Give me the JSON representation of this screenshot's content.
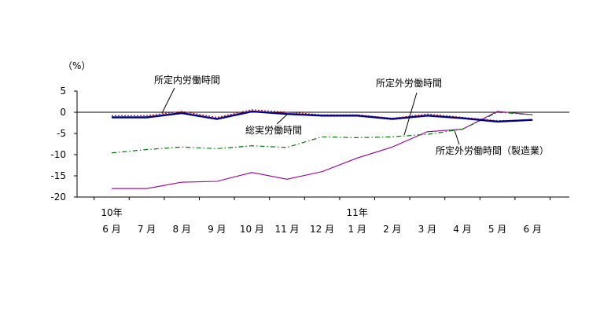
{
  "chart_data": {
    "type": "line",
    "unit_label": "（%）",
    "categories": [
      "6 月",
      "7 月",
      "8 月",
      "9 月",
      "10 月",
      "11 月",
      "12 月",
      "1 月",
      "2 月",
      "3 月",
      "4 月",
      "5 月",
      "6 月"
    ],
    "category_years": [
      {
        "index": 0,
        "label": "10年"
      },
      {
        "index": 7,
        "label": "11年"
      }
    ],
    "ylim": [
      -20,
      5
    ],
    "yticks": [
      5,
      0,
      -5,
      -10,
      -15,
      -20
    ],
    "zero_line": true,
    "grid": false,
    "series": [
      {
        "name": "所定内労働時間",
        "color": "#cc0000",
        "style": "dotted",
        "values": [
          -0.8,
          -0.8,
          0.2,
          -1.2,
          0.6,
          0.0,
          -0.6,
          -0.6,
          -1.4,
          -0.4,
          -1.2,
          -2.0,
          -1.8
        ]
      },
      {
        "name": "総実労働時間",
        "color": "#00008b",
        "style": "solid-thick",
        "values": [
          -1.2,
          -1.2,
          -0.2,
          -1.6,
          0.2,
          -0.4,
          -0.8,
          -0.8,
          -1.6,
          -0.8,
          -1.4,
          -2.2,
          -1.8
        ]
      },
      {
        "name": "所定外労働時間",
        "color": "#007700",
        "style": "dash-dot",
        "values": [
          -9.6,
          -8.8,
          -8.2,
          -8.6,
          -7.9,
          -8.3,
          -5.8,
          -6.0,
          -5.8,
          -5.2,
          -4.0,
          0.0,
          -0.6
        ]
      },
      {
        "name": "所定外労働時間（製造業）",
        "color": "#990099",
        "style": "solid",
        "values": [
          -18.0,
          -18.0,
          -16.5,
          -16.3,
          -14.2,
          -15.8,
          -14.0,
          -10.8,
          -8.2,
          -4.6,
          -4.0,
          0.2,
          -0.6
        ]
      }
    ]
  }
}
